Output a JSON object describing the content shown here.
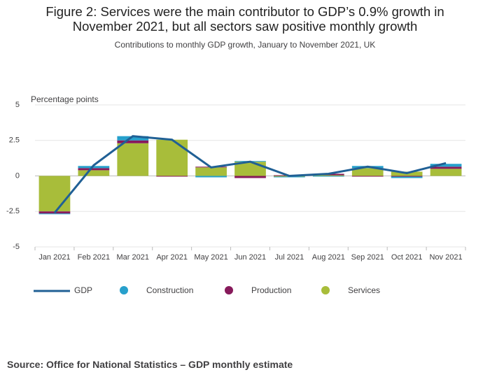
{
  "chart_data": {
    "type": "bar",
    "stacked": true,
    "title": "Figure 2: Services were the main contributor to GDP’s 0.9% growth in November 2021, but all sectors saw positive monthly growth",
    "subtitle": "Contributions to monthly GDP growth, January to November 2021, UK",
    "y_label": "Percentage points",
    "source": "Source: Office for National Statistics – GDP monthly estimate",
    "categories": [
      "Jan 2021",
      "Feb 2021",
      "Mar 2021",
      "Apr 2021",
      "May 2021",
      "Jun 2021",
      "Jul 2021",
      "Aug 2021",
      "Sep 2021",
      "Oct 2021",
      "Nov 2021"
    ],
    "series": [
      {
        "name": "GDP",
        "type": "line",
        "color": "#206095",
        "values": [
          -2.6,
          0.75,
          2.8,
          2.55,
          0.6,
          1.0,
          0.0,
          0.15,
          0.65,
          0.2,
          0.9
        ]
      },
      {
        "name": "Construction",
        "color": "#27a0cc",
        "values": [
          -0.05,
          0.15,
          0.3,
          0.0,
          -0.1,
          0.05,
          -0.05,
          -0.05,
          0.15,
          -0.1,
          0.2
        ]
      },
      {
        "name": "Production",
        "color": "#871a5b",
        "values": [
          -0.15,
          0.15,
          0.2,
          -0.05,
          0.05,
          -0.15,
          0.05,
          0.1,
          -0.05,
          -0.05,
          0.15
        ]
      },
      {
        "name": "Services",
        "color": "#a8bd3a",
        "values": [
          -2.5,
          0.4,
          2.3,
          2.55,
          0.6,
          1.0,
          -0.05,
          0.05,
          0.55,
          0.3,
          0.5
        ]
      }
    ],
    "ylim": [
      -5,
      5
    ],
    "yticks": [
      5,
      2.5,
      0,
      -2.5,
      -5
    ],
    "grid": true
  }
}
